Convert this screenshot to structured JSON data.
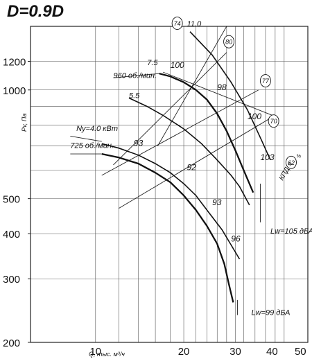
{
  "chart_data": {
    "type": "line",
    "title": "D=0.9D",
    "xlabel": "Q, тыс. м³/ч",
    "ylabel": "Pv, Па",
    "x_scale": "log",
    "y_scale": "log",
    "xlim": [
      6,
      53
    ],
    "ylim": [
      200,
      1500
    ],
    "x_ticks": [
      {
        "value": 10,
        "label": "10"
      },
      {
        "value": 20,
        "label": "20"
      },
      {
        "value": 30,
        "label": "30"
      },
      {
        "value": 40,
        "label": "40"
      },
      {
        "value": 50,
        "label": "50"
      }
    ],
    "y_ticks": [
      {
        "value": 200,
        "label": "200"
      },
      {
        "value": 300,
        "label": "300"
      },
      {
        "value": 400,
        "label": "400"
      },
      {
        "value": 500,
        "label": "500"
      },
      {
        "value": 1000,
        "label": "1000"
      },
      {
        "value": 1200,
        "label": "1200"
      }
    ],
    "grid_x": [
      10,
      12,
      14,
      16,
      18,
      20,
      22,
      24,
      26,
      28,
      30,
      32,
      35,
      38,
      41,
      44
    ],
    "grid_y": [
      300,
      400,
      500,
      600,
      700,
      800,
      900,
      1000,
      1200
    ],
    "grid": true,
    "series": [
      {
        "name": "960 об./мин.",
        "points": [
          [
            16.5,
            1110
          ],
          [
            18,
            1090
          ],
          [
            20,
            1050
          ],
          [
            22,
            1000
          ],
          [
            24,
            940
          ],
          [
            26,
            860
          ],
          [
            28,
            770
          ],
          [
            30,
            680
          ],
          [
            32,
            600
          ],
          [
            34.5,
            520
          ]
        ]
      },
      {
        "name": "",
        "points": [
          [
            13,
            950
          ],
          [
            15,
            900
          ],
          [
            17,
            850
          ],
          [
            20,
            780
          ],
          [
            23,
            710
          ],
          [
            26,
            640
          ],
          [
            29,
            580
          ],
          [
            31,
            540
          ],
          [
            33.5,
            480
          ]
        ]
      },
      {
        "name": "",
        "points": [
          [
            10.5,
            710
          ],
          [
            12,
            690
          ],
          [
            14,
            660
          ],
          [
            16,
            625
          ],
          [
            18,
            590
          ],
          [
            20,
            550
          ],
          [
            22,
            510
          ],
          [
            24,
            465
          ],
          [
            27,
            410
          ],
          [
            31,
            340
          ]
        ]
      },
      {
        "name": "725 об./мин.",
        "points": [
          [
            10.5,
            665
          ],
          [
            12,
            650
          ],
          [
            14,
            625
          ],
          [
            16,
            590
          ],
          [
            18,
            555
          ],
          [
            20,
            510
          ],
          [
            22,
            465
          ],
          [
            24,
            420
          ],
          [
            26,
            375
          ],
          [
            27.5,
            330
          ],
          [
            28.5,
            290
          ],
          [
            29.5,
            258
          ]
        ]
      }
    ],
    "curve_labels": [
      {
        "text": "100",
        "x": 18,
        "y": 1150
      },
      {
        "text": "98",
        "x": 26,
        "y": 1000
      },
      {
        "text": "100",
        "x": 33,
        "y": 830
      },
      {
        "text": "103",
        "x": 36.5,
        "y": 640
      },
      {
        "text": "93",
        "x": 13.5,
        "y": 700
      },
      {
        "text": "92",
        "x": 20.5,
        "y": 600
      },
      {
        "text": "93",
        "x": 25,
        "y": 480
      },
      {
        "text": "96",
        "x": 29,
        "y": 380
      }
    ],
    "power_labels": [
      {
        "text": "11.0",
        "x": 20.5,
        "y": 1500
      },
      {
        "text": "7.5",
        "x": 15,
        "y": 1170
      },
      {
        "text": "5.5",
        "x": 13,
        "y": 950
      },
      {
        "text": "Ny=4.0 кВт",
        "x": 8.6,
        "y": 770
      }
    ],
    "speed_labels": [
      {
        "text": "960 об./мин.",
        "x": 11.5,
        "y": 1080
      },
      {
        "text": "725 об./мин.",
        "x": 8.2,
        "y": 690
      }
    ],
    "efficiency_labels": [
      {
        "text": "74",
        "x": 19,
        "y": 1530
      },
      {
        "text": "80",
        "x": 28.5,
        "y": 1360
      },
      {
        "text": "77",
        "x": 38,
        "y": 1060
      },
      {
        "text": "70",
        "x": 40.5,
        "y": 820
      },
      {
        "text": "62",
        "x": 46.5,
        "y": 630
      }
    ],
    "kpd_label": "КПД =",
    "percent_sign": "%",
    "lw_labels": [
      {
        "text": "Lw=105 дБА",
        "x": 39.5,
        "y": 400
      },
      {
        "text": "Lw=99 дБА",
        "x": 34,
        "y": 238
      }
    ]
  }
}
